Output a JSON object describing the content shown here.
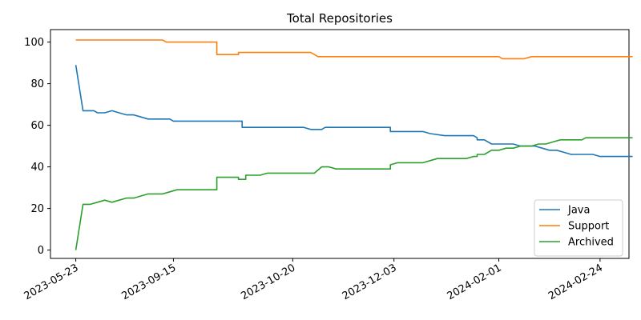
{
  "chart_data": {
    "type": "line",
    "title": "Total Repositories",
    "xlabel": "",
    "ylabel": "",
    "ylim": [
      -4,
      106
    ],
    "y_ticks": [
      0,
      20,
      40,
      60,
      80,
      100
    ],
    "x_tick_labels": [
      "2023-05-23",
      "2023-09-15",
      "2023-10-20",
      "2023-12-03",
      "2024-02-01",
      "2024-02-24"
    ],
    "x_tick_positions": [
      0,
      27,
      60,
      88,
      117,
      145
    ],
    "x_range": [
      -7,
      153
    ],
    "grid": false,
    "legend_position": "lower-right",
    "series": [
      {
        "name": "Java",
        "color": "#1f77b4",
        "points": [
          [
            0,
            89
          ],
          [
            2,
            67
          ],
          [
            5,
            67
          ],
          [
            6,
            66
          ],
          [
            8,
            66
          ],
          [
            10,
            67
          ],
          [
            12,
            66
          ],
          [
            14,
            65
          ],
          [
            16,
            65
          ],
          [
            18,
            64
          ],
          [
            20,
            63
          ],
          [
            26,
            63
          ],
          [
            27,
            62
          ],
          [
            46,
            62
          ],
          [
            46,
            59
          ],
          [
            63,
            59
          ],
          [
            65,
            58
          ],
          [
            68,
            58
          ],
          [
            69,
            59
          ],
          [
            87,
            59
          ],
          [
            87,
            57
          ],
          [
            96,
            57
          ],
          [
            98,
            56
          ],
          [
            102,
            55
          ],
          [
            110,
            55
          ],
          [
            111,
            54
          ],
          [
            111,
            53
          ],
          [
            113,
            53
          ],
          [
            115,
            51
          ],
          [
            121,
            51
          ],
          [
            123,
            50
          ],
          [
            127,
            50
          ],
          [
            129,
            49
          ],
          [
            131,
            48
          ],
          [
            133,
            48
          ],
          [
            135,
            47
          ],
          [
            137,
            46
          ],
          [
            143,
            46
          ],
          [
            145,
            45
          ],
          [
            154,
            45
          ]
        ]
      },
      {
        "name": "Support",
        "color": "#ff7f0e",
        "points": [
          [
            0,
            101
          ],
          [
            24,
            101
          ],
          [
            25,
            100
          ],
          [
            39,
            100
          ],
          [
            39,
            94
          ],
          [
            45,
            94
          ],
          [
            45,
            95
          ],
          [
            65,
            95
          ],
          [
            67,
            93
          ],
          [
            117,
            93
          ],
          [
            118,
            92
          ],
          [
            124,
            92
          ],
          [
            126,
            93
          ],
          [
            154,
            93
          ]
        ]
      },
      {
        "name": "Archived",
        "color": "#2ca02c",
        "points": [
          [
            0,
            0
          ],
          [
            2,
            22
          ],
          [
            4,
            22
          ],
          [
            6,
            23
          ],
          [
            8,
            24
          ],
          [
            10,
            23
          ],
          [
            12,
            24
          ],
          [
            14,
            25
          ],
          [
            16,
            25
          ],
          [
            18,
            26
          ],
          [
            20,
            27
          ],
          [
            24,
            27
          ],
          [
            26,
            28
          ],
          [
            28,
            29
          ],
          [
            39,
            29
          ],
          [
            39,
            35
          ],
          [
            45,
            35
          ],
          [
            45,
            34
          ],
          [
            47,
            34
          ],
          [
            47,
            36
          ],
          [
            51,
            36
          ],
          [
            53,
            37
          ],
          [
            66,
            37
          ],
          [
            68,
            40
          ],
          [
            70,
            40
          ],
          [
            72,
            39
          ],
          [
            87,
            39
          ],
          [
            87,
            41
          ],
          [
            89,
            42
          ],
          [
            96,
            42
          ],
          [
            98,
            43
          ],
          [
            100,
            44
          ],
          [
            108,
            44
          ],
          [
            110,
            45
          ],
          [
            111,
            45
          ],
          [
            111,
            46
          ],
          [
            113,
            46
          ],
          [
            115,
            48
          ],
          [
            117,
            48
          ],
          [
            119,
            49
          ],
          [
            121,
            49
          ],
          [
            123,
            50
          ],
          [
            126,
            50
          ],
          [
            128,
            51
          ],
          [
            130,
            51
          ],
          [
            132,
            52
          ],
          [
            134,
            53
          ],
          [
            140,
            53
          ],
          [
            141,
            54
          ],
          [
            154,
            54
          ]
        ]
      }
    ]
  }
}
